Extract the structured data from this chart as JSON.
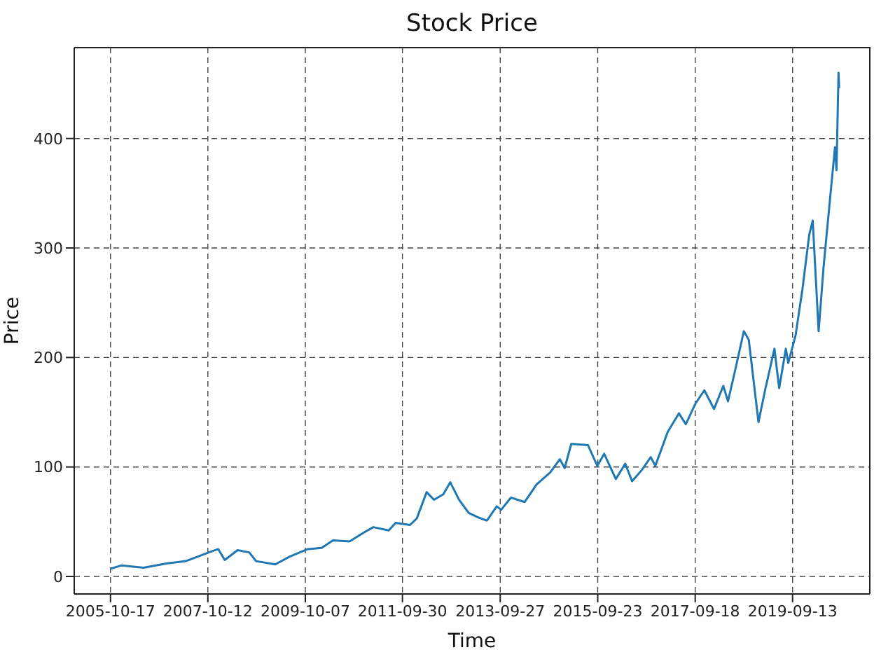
{
  "chart_data": {
    "type": "line",
    "title": "Stock Price",
    "xlabel": "Time",
    "ylabel": "Price",
    "x": [
      "2005-10-17",
      "2006-01-05",
      "2006-06-20",
      "2006-12-15",
      "2007-05-01",
      "2007-10-20",
      "2007-12-28",
      "2008-02-15",
      "2008-05-20",
      "2008-08-15",
      "2008-10-05",
      "2009-02-25",
      "2009-06-10",
      "2009-10-25",
      "2010-02-05",
      "2010-05-01",
      "2010-09-01",
      "2010-12-15",
      "2011-02-25",
      "2011-06-20",
      "2011-08-10",
      "2011-11-25",
      "2012-01-15",
      "2012-03-28",
      "2012-05-22",
      "2012-07-30",
      "2012-09-20",
      "2012-11-25",
      "2013-02-05",
      "2013-04-15",
      "2013-06-20",
      "2013-09-01",
      "2013-10-05",
      "2013-12-15",
      "2014-03-28",
      "2014-06-25",
      "2014-10-05",
      "2014-12-15",
      "2015-01-20",
      "2015-03-10",
      "2015-07-12",
      "2015-09-20",
      "2015-11-10",
      "2016-02-05",
      "2016-04-15",
      "2016-06-05",
      "2016-08-15",
      "2016-10-22",
      "2016-11-25",
      "2017-02-25",
      "2017-05-20",
      "2017-07-10",
      "2017-09-20",
      "2017-11-25",
      "2018-02-05",
      "2018-04-15",
      "2018-05-20",
      "2018-07-10",
      "2018-09-15",
      "2018-10-22",
      "2019-01-02",
      "2019-02-20",
      "2019-05-01",
      "2019-06-05",
      "2019-07-25",
      "2019-08-12",
      "2019-10-05",
      "2019-11-25",
      "2020-01-15",
      "2020-02-10",
      "2020-03-25",
      "2020-05-01",
      "2020-06-25",
      "2020-07-25",
      "2020-08-05",
      "2020-08-20",
      "2020-08-25"
    ],
    "series": [
      {
        "color": "#1f77b4",
        "values": [
          7,
          10,
          8,
          12,
          14,
          22,
          25,
          15,
          24,
          22,
          14,
          11,
          18,
          25,
          26,
          33,
          32,
          40,
          45,
          42,
          49,
          47,
          53,
          77,
          70,
          75,
          86,
          70,
          58,
          54,
          51,
          64,
          61,
          72,
          68,
          84,
          95,
          107,
          99,
          121,
          120,
          101,
          112,
          89,
          103,
          87,
          97,
          109,
          101,
          132,
          149,
          139,
          158,
          170,
          153,
          174,
          160,
          187,
          224,
          216,
          141,
          170,
          208,
          172,
          208,
          195,
          220,
          262,
          312,
          325,
          224,
          283,
          354,
          392,
          371,
          460,
          446
        ]
      }
    ],
    "xlim": [
      "2005-01-20",
      "2021-04-10"
    ],
    "xticks": [
      "2005-10-17",
      "2007-10-12",
      "2009-10-07",
      "2011-09-30",
      "2013-09-27",
      "2015-09-23",
      "2017-09-18",
      "2019-09-13"
    ],
    "ylim": [
      -16,
      483
    ],
    "yticks": [
      0,
      100,
      200,
      300,
      400
    ],
    "grid": true
  }
}
